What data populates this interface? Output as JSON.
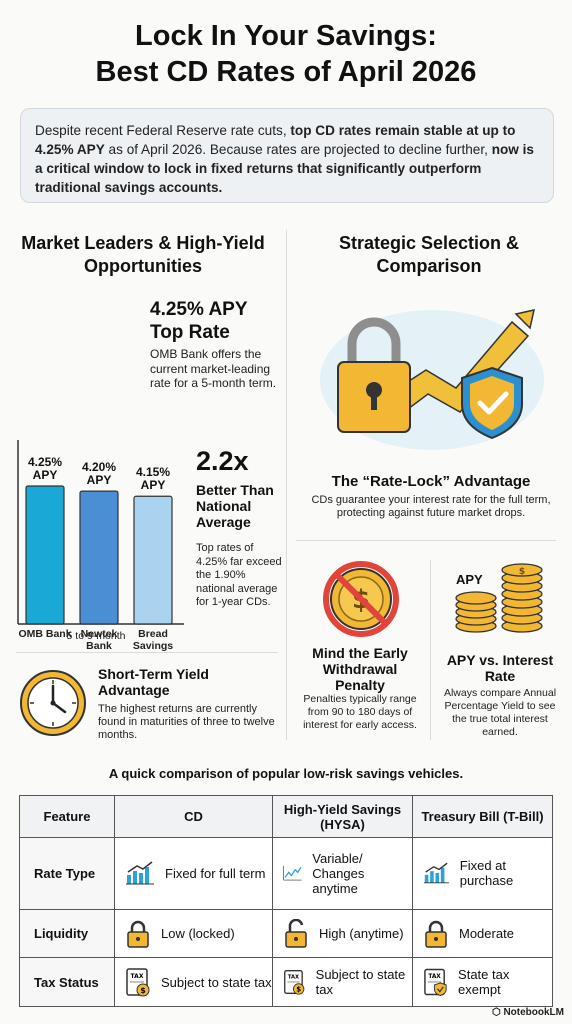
{
  "title": {
    "line1": "Lock In Your Savings:",
    "line2": "Best CD Rates of April 2026"
  },
  "intro": {
    "part1": "Despite recent Federal Reserve rate cuts, ",
    "bold1": "top CD rates remain stable at up to 4.25% APY",
    "part2": " as of April 2026. Because rates are projected to decline further, ",
    "bold2": "now is a critical window to lock in fixed returns that significantly outperform traditional savings accounts."
  },
  "left": {
    "heading": "Market Leaders & High-Yield Opportunities",
    "top_rate": {
      "headline": "4.25% APY Top Rate",
      "desc": "OMB Bank offers the current market-leading rate for a 5-month term."
    },
    "multiplier": {
      "value": "2.2x",
      "label": "Better Than National Average",
      "desc": "Top rates of 4.25% far exceed the 1.90% national average for 1-year CDs."
    },
    "short_term": {
      "title": "Short-Term Yield Advantage",
      "desc": "The highest returns are currently found in maturities of three to twelve months."
    }
  },
  "chart_data": {
    "type": "bar",
    "categories": [
      "OMB Bank",
      "Newtek Bank",
      "Bread Savings"
    ],
    "values": [
      4.25,
      4.2,
      4.15
    ],
    "value_labels": [
      "4.25% APY",
      "4.20% APY",
      "4.15% APY"
    ],
    "xlabel": "5 to 9-month",
    "colors": [
      "#1aa8d6",
      "#4a8fd4",
      "#a9d3ef"
    ]
  },
  "right": {
    "heading": "Strategic Selection & Comparison",
    "rate_lock": {
      "title": "The “Rate-Lock” Advantage",
      "desc": "CDs guarantee your interest rate for the full term, protecting against future market drops."
    },
    "penalty": {
      "title": "Mind the Early Withdrawal Penalty",
      "desc": "Penalties typically range from 90 to 180 days of interest for early access."
    },
    "apy": {
      "icon_label": "APY",
      "title": "APY vs. Interest Rate",
      "desc": "Always compare Annual Percentage Yield to see the true total interest earned."
    }
  },
  "comparison": {
    "caption": "A quick comparison of popular low-risk savings vehicles.",
    "headers": [
      "Feature",
      "CD",
      "High-Yield Savings (HYSA)",
      "Treasury Bill (T-Bill)"
    ],
    "rows": [
      {
        "feature": "Rate Type",
        "cd": "Fixed for full term",
        "hysa": "Variable/ Changes anytime",
        "tbill": "Fixed at purchase"
      },
      {
        "feature": "Liquidity",
        "cd": "Low (locked)",
        "hysa": "High (anytime)",
        "tbill": "Moderate"
      },
      {
        "feature": "Tax Status",
        "cd": "Subject to state tax",
        "hysa": "Subject to state tax",
        "tbill": "State tax exempt"
      }
    ]
  },
  "icons": {
    "tax_doc_label": "TAX",
    "currency_symbol": "$"
  },
  "brand": "NotebookLM"
}
